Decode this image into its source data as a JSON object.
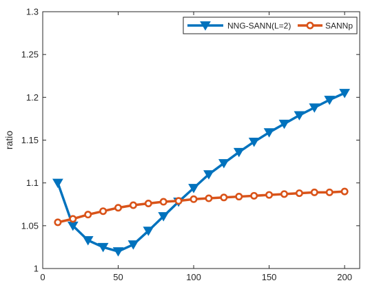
{
  "chart_data": {
    "type": "line",
    "title": "",
    "xlabel": "",
    "ylabel": "ratio",
    "xlim": [
      0,
      210
    ],
    "ylim": [
      1,
      1.3
    ],
    "xticks": [
      0,
      50,
      100,
      150,
      200
    ],
    "yticks": [
      1,
      1.05,
      1.1,
      1.15,
      1.2,
      1.25,
      1.3
    ],
    "xtick_labels": [
      "0",
      "50",
      "100",
      "150",
      "200"
    ],
    "ytick_labels": [
      "1",
      "1.05",
      "1.1",
      "1.15",
      "1.2",
      "1.25",
      "1.3"
    ],
    "grid": false,
    "legend_position": "top-right",
    "x": [
      10,
      20,
      30,
      40,
      50,
      60,
      70,
      80,
      90,
      100,
      110,
      120,
      130,
      140,
      150,
      160,
      170,
      180,
      190,
      200
    ],
    "series": [
      {
        "name": "NNG-SANN(L=2)",
        "color": "#0072BD",
        "marker": "triangle-down",
        "values": [
          1.1,
          1.05,
          1.033,
          1.025,
          1.02,
          1.028,
          1.044,
          1.061,
          1.078,
          1.094,
          1.11,
          1.123,
          1.136,
          1.148,
          1.159,
          1.169,
          1.179,
          1.188,
          1.197,
          1.205
        ]
      },
      {
        "name": "SANNp",
        "color": "#D95319",
        "marker": "circle",
        "values": [
          1.054,
          1.058,
          1.063,
          1.067,
          1.071,
          1.074,
          1.076,
          1.078,
          1.079,
          1.081,
          1.082,
          1.083,
          1.084,
          1.085,
          1.086,
          1.087,
          1.088,
          1.089,
          1.089,
          1.09
        ]
      }
    ]
  }
}
